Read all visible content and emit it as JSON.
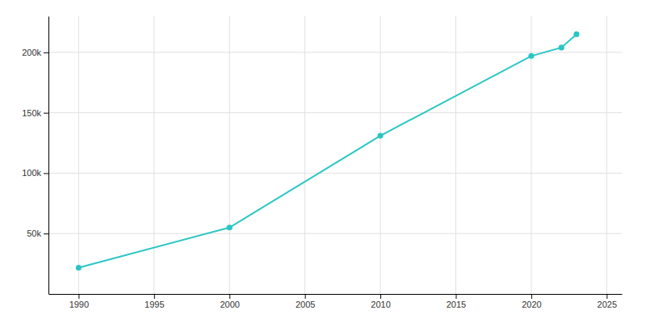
{
  "chart_data": {
    "type": "line",
    "x": [
      1990,
      2000,
      2010,
      2020,
      2022,
      2023
    ],
    "values": [
      21685,
      55000,
      131000,
      197000,
      204000,
      215000
    ],
    "color": "#2bc5c5",
    "marker": "circle",
    "xlim": [
      1988,
      2026
    ],
    "xticks": [
      1990,
      1995,
      2000,
      2005,
      2010,
      2015,
      2020,
      2025
    ],
    "ylim": [
      0,
      230000
    ],
    "yticks": [
      {
        "value": 50000,
        "label": "50k"
      },
      {
        "value": 100000,
        "label": "100k"
      },
      {
        "value": 150000,
        "label": "150k"
      },
      {
        "value": 200000,
        "label": "200k"
      }
    ],
    "grid": true
  }
}
